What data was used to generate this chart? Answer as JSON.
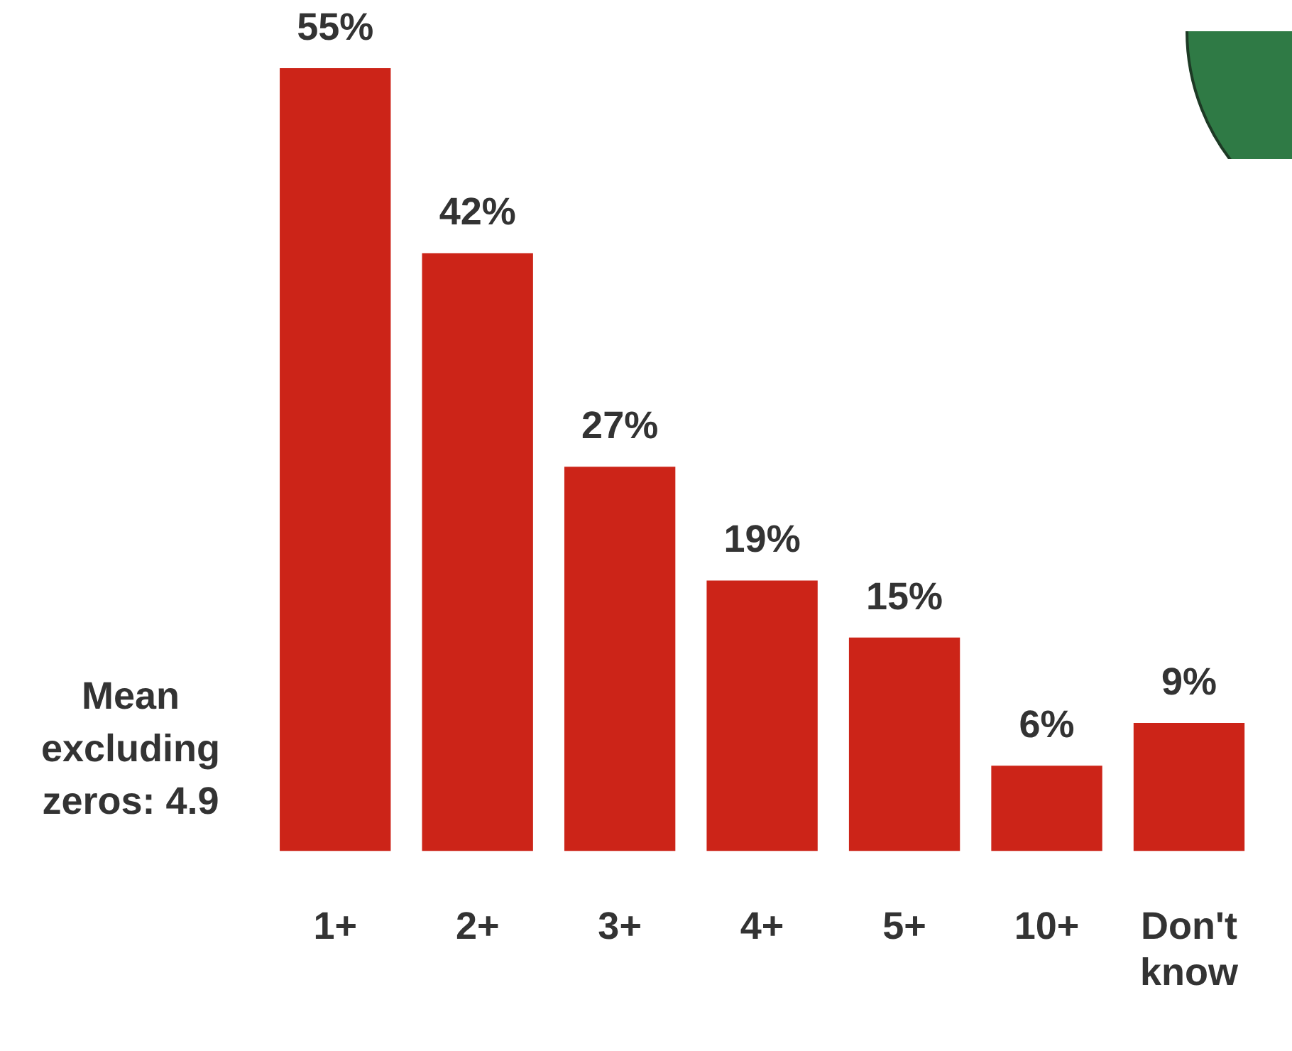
{
  "chart_data": {
    "type": "bar",
    "categories": [
      "1+",
      "2+",
      "3+",
      "4+",
      "5+",
      "10+",
      "Don't know"
    ],
    "values": [
      55,
      42,
      27,
      19,
      15,
      6,
      9
    ],
    "value_labels": [
      "55%",
      "42%",
      "27%",
      "19%",
      "15%",
      "6%",
      "9%"
    ],
    "color": "#cc2418",
    "annotations": [
      "Mean excluding zeros: 4.9"
    ]
  }
}
